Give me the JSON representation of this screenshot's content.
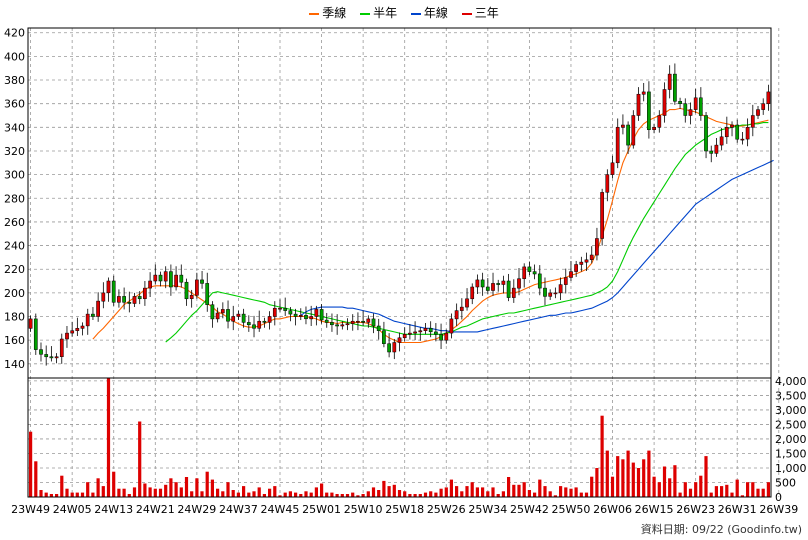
{
  "legend": [
    {
      "label": "季線",
      "color": "#ff6600"
    },
    {
      "label": "半年",
      "color": "#00cc00"
    },
    {
      "label": "年線",
      "color": "#0044cc"
    },
    {
      "label": "三年",
      "color": "#dd0000"
    }
  ],
  "footer": {
    "date_label": "資料日期: 09/22",
    "source": "(Goodinfo.tw)"
  },
  "colors": {
    "up": "#dd0000",
    "down": "#00a000",
    "volume": "#dd0000",
    "grid": "#999999"
  },
  "chart_data": {
    "type": "candlestick",
    "x_tick_labels": [
      "23W49",
      "24W05",
      "24W13",
      "24W21",
      "24W29",
      "24W37",
      "24W45",
      "25W01",
      "25W10",
      "25W18",
      "25W26",
      "25W34",
      "25W42",
      "25W50",
      "26W06",
      "26W15",
      "26W23",
      "26W31",
      "26W39"
    ],
    "price_axis": {
      "ticks": [
        140,
        160,
        180,
        200,
        220,
        240,
        260,
        280,
        300,
        320,
        340,
        360,
        380,
        400,
        420
      ],
      "ylim": [
        128,
        424
      ]
    },
    "volume_axis": {
      "tick_labels": [
        "4,000",
        "3,500",
        "3,000",
        "2,500",
        "2,000",
        "1,500",
        "1,000",
        "500",
        "0"
      ],
      "ylim": [
        0,
        4100
      ]
    },
    "weeks": 143,
    "close": [
      178,
      152,
      148,
      146,
      145,
      146,
      161,
      166,
      168,
      170,
      172,
      182,
      180,
      193,
      200,
      210,
      192,
      197,
      192,
      191,
      197,
      195,
      204,
      210,
      215,
      210,
      218,
      205,
      215,
      209,
      195,
      198,
      211,
      208,
      190,
      178,
      183,
      186,
      176,
      180,
      182,
      175,
      173,
      170,
      176,
      175,
      180,
      187,
      187,
      185,
      182,
      180,
      181,
      178,
      180,
      186,
      177,
      175,
      173,
      172,
      173,
      174,
      176,
      176,
      175,
      178,
      172,
      168,
      157,
      150,
      158,
      162,
      165,
      166,
      167,
      168,
      170,
      167,
      165,
      160,
      166,
      178,
      185,
      188,
      195,
      205,
      211,
      205,
      202,
      208,
      207,
      210,
      196,
      204,
      212,
      222,
      218,
      216,
      204,
      197,
      200,
      200,
      207,
      213,
      218,
      224,
      226,
      228,
      232,
      246,
      285,
      300,
      310,
      340,
      342,
      325,
      350,
      368,
      370,
      338,
      340,
      350,
      372,
      385,
      362,
      360,
      350,
      355,
      365,
      350,
      320,
      318,
      325,
      332,
      340,
      342,
      330,
      330,
      340,
      350,
      355,
      360,
      370
    ],
    "ma_quarter": [
      null,
      null,
      null,
      null,
      null,
      null,
      null,
      null,
      null,
      null,
      null,
      null,
      160.9,
      166,
      170,
      175,
      180,
      185,
      190,
      193,
      196,
      199,
      203,
      205,
      206,
      206,
      206,
      206,
      206,
      205,
      203,
      200,
      197,
      194,
      191,
      188,
      184,
      182,
      179,
      176,
      174,
      172,
      171,
      171,
      172,
      174,
      176,
      178,
      178,
      179,
      180,
      180,
      180,
      180,
      179,
      178,
      176,
      175,
      175,
      174,
      175,
      175,
      175,
      175,
      175,
      174,
      172,
      169,
      165,
      162,
      160,
      158,
      158,
      158,
      158,
      158,
      159,
      160,
      161,
      163,
      166,
      169,
      172,
      176,
      180,
      185,
      189,
      193,
      196,
      198,
      199,
      200,
      200,
      200,
      201,
      203,
      205,
      207,
      208,
      209,
      210,
      211,
      212,
      213,
      215,
      216,
      218,
      220,
      225,
      235,
      248,
      262,
      278,
      295,
      310,
      320,
      330,
      338,
      343,
      346,
      348,
      350,
      352,
      355,
      355,
      356,
      355,
      354,
      353,
      351,
      349,
      347,
      345,
      344,
      343,
      342,
      341,
      341,
      342,
      343,
      344,
      345,
      346
    ],
    "ma_half": [
      null,
      null,
      null,
      null,
      null,
      null,
      null,
      null,
      null,
      null,
      null,
      null,
      null,
      null,
      null,
      null,
      null,
      null,
      null,
      null,
      null,
      null,
      null,
      null,
      null,
      null,
      158.4,
      162,
      166,
      171,
      176,
      181,
      185,
      190,
      195,
      200,
      201,
      200,
      199,
      198,
      197,
      196,
      195,
      194,
      193,
      192,
      190,
      189,
      188,
      187,
      186,
      185,
      184,
      183,
      182,
      181,
      180,
      179,
      178,
      177,
      176,
      175,
      174,
      173,
      172,
      172,
      171,
      170,
      169,
      168,
      167,
      166,
      165,
      165,
      165,
      165,
      165,
      165,
      165,
      165,
      166,
      167,
      169,
      171,
      172,
      174,
      176,
      178,
      179,
      180,
      181,
      182,
      183,
      183,
      184,
      185,
      186,
      187,
      188,
      189,
      190,
      191,
      192,
      193,
      194,
      195,
      196,
      197,
      198,
      200,
      202,
      205,
      210,
      218,
      228,
      238,
      247,
      255,
      263,
      270,
      277,
      284,
      291,
      298,
      305,
      311,
      317,
      321,
      325,
      328,
      331,
      334,
      336,
      338,
      339,
      340,
      341,
      342,
      342,
      343,
      343,
      344,
      344
    ],
    "ma_year": [
      null,
      null,
      null,
      null,
      null,
      null,
      null,
      null,
      null,
      null,
      null,
      null,
      null,
      null,
      null,
      null,
      null,
      null,
      null,
      null,
      null,
      null,
      null,
      null,
      null,
      null,
      null,
      null,
      null,
      null,
      null,
      null,
      null,
      null,
      null,
      null,
      null,
      null,
      null,
      null,
      null,
      null,
      null,
      null,
      null,
      null,
      null,
      null,
      null,
      null,
      null,
      null,
      181,
      184,
      186,
      187,
      188,
      188,
      188,
      188,
      188,
      187,
      187,
      186,
      185,
      184,
      183,
      182,
      180,
      178,
      176,
      175,
      174,
      173,
      172,
      171,
      170,
      170,
      169,
      168,
      168,
      167,
      167,
      167,
      167,
      167,
      167,
      168,
      169,
      170,
      171,
      172,
      173,
      174,
      175,
      176,
      177,
      178,
      179,
      180,
      181,
      181,
      182,
      183,
      183,
      184,
      185,
      186,
      187,
      189,
      191,
      193,
      196,
      200,
      205,
      210,
      215,
      220,
      225,
      230,
      235,
      240,
      245,
      250,
      255,
      260,
      265,
      270,
      275,
      278,
      281,
      284,
      287,
      290,
      293,
      296,
      298,
      300,
      302,
      304,
      306,
      308,
      310,
      312
    ]
  }
}
